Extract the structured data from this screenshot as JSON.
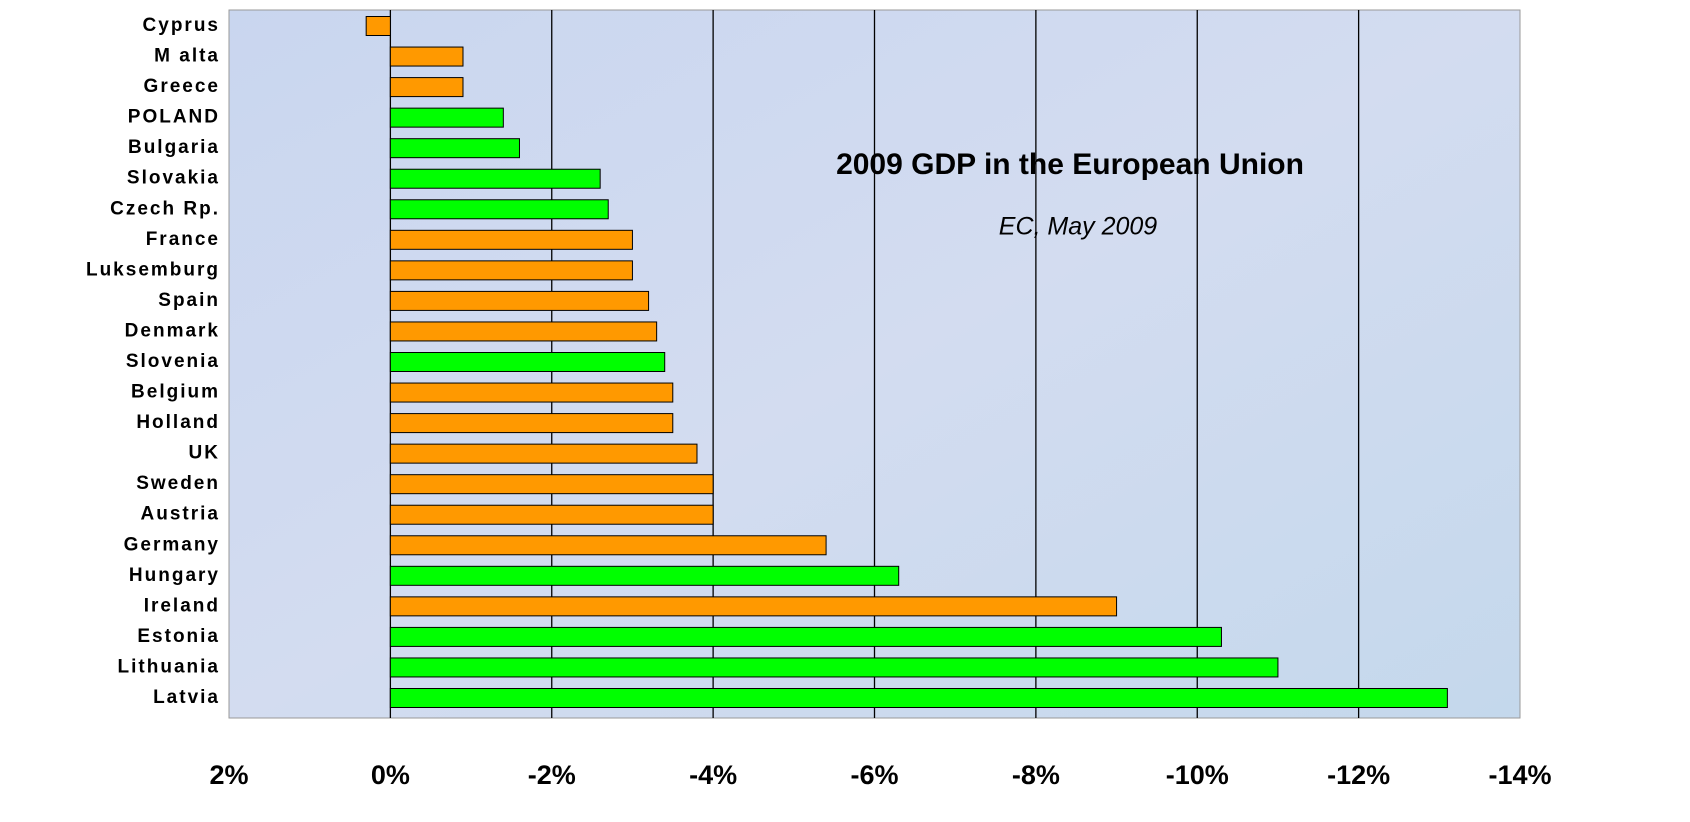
{
  "chart_data": {
    "type": "barh",
    "title": "2009 GDP in the European Union",
    "subtitle": "EC, May 2009",
    "categories": [
      "Cyprus",
      "M alta",
      "Greece",
      "POLAND",
      "Bulgaria",
      "Slovakia",
      "Czech Rp.",
      "France",
      "Luksemburg",
      "Spain",
      "Denmark",
      "Slovenia",
      "Belgium",
      "Holland",
      "UK",
      "Sweden",
      "Austria",
      "Germany",
      "Hungary",
      "Ireland",
      "Estonia",
      "Lithuania",
      "Latvia"
    ],
    "values": [
      0.3,
      -0.9,
      -0.9,
      -1.4,
      -1.6,
      -2.6,
      -2.7,
      -3.0,
      -3.0,
      -3.2,
      -3.3,
      -3.4,
      -3.5,
      -3.5,
      -3.8,
      -4.0,
      -4.0,
      -5.4,
      -6.3,
      -9.0,
      -10.3,
      -11.0,
      -13.1
    ],
    "colors": [
      "#ff9900",
      "#ff9900",
      "#ff9900",
      "#00ff00",
      "#00ff00",
      "#00ff00",
      "#00ff00",
      "#ff9900",
      "#ff9900",
      "#ff9900",
      "#ff9900",
      "#00ff00",
      "#ff9900",
      "#ff9900",
      "#ff9900",
      "#ff9900",
      "#ff9900",
      "#ff9900",
      "#00ff00",
      "#ff9900",
      "#00ff00",
      "#00ff00",
      "#00ff00"
    ],
    "xlim": [
      2,
      -14
    ],
    "xticks": [
      {
        "value": 2,
        "label": "2%"
      },
      {
        "value": 0,
        "label": "0%"
      },
      {
        "value": -2,
        "label": "-2%"
      },
      {
        "value": -4,
        "label": "-4%"
      },
      {
        "value": -6,
        "label": "-6%"
      },
      {
        "value": -8,
        "label": "-8%"
      },
      {
        "value": -10,
        "label": "-10%"
      },
      {
        "value": -12,
        "label": "-12%"
      },
      {
        "value": -14,
        "label": "-14%"
      }
    ],
    "grid": true
  }
}
